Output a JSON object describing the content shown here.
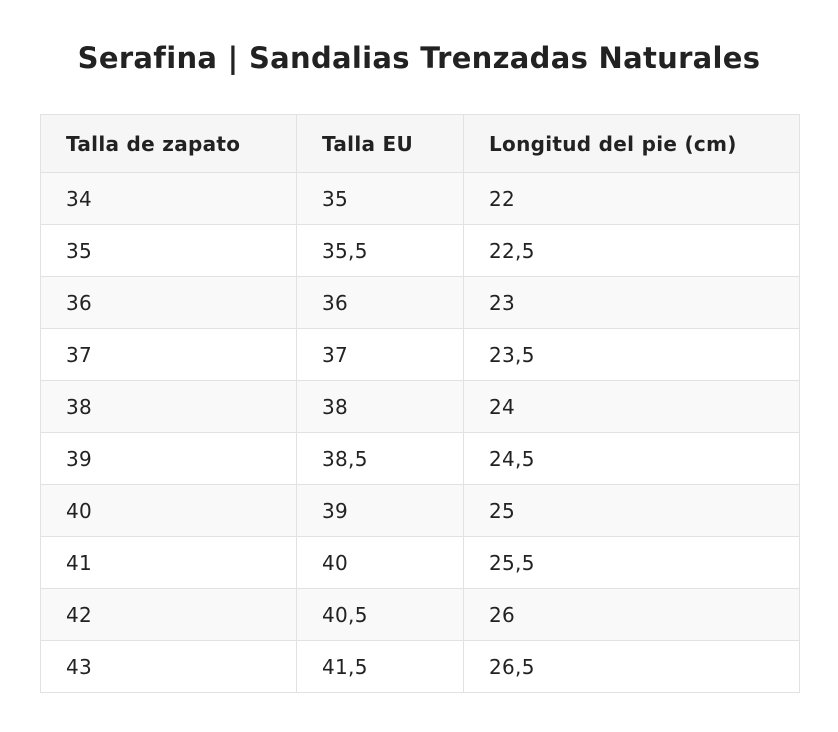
{
  "title": "Serafina | Sandalias Trenzadas Naturales",
  "table": {
    "headers": [
      "Talla de zapato",
      "Talla EU",
      "Longitud del pie (cm)"
    ],
    "rows": [
      [
        "34",
        "35",
        "22"
      ],
      [
        "35",
        "35,5",
        "22,5"
      ],
      [
        "36",
        "36",
        "23"
      ],
      [
        "37",
        "37",
        "23,5"
      ],
      [
        "38",
        "38",
        "24"
      ],
      [
        "39",
        "38,5",
        "24,5"
      ],
      [
        "40",
        "39",
        "25"
      ],
      [
        "41",
        "40",
        "25,5"
      ],
      [
        "42",
        "40,5",
        "26"
      ],
      [
        "43",
        "41,5",
        "26,5"
      ]
    ]
  },
  "colors": {
    "text": "#222222",
    "header_bg": "#f6f6f6",
    "row_alt_bg": "#f9f9f9",
    "border": "#e2e2e2"
  }
}
